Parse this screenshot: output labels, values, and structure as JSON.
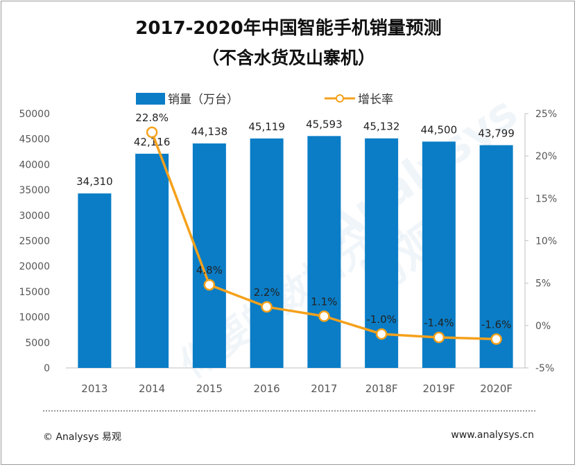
{
  "title": {
    "line1": "2017-2020年中国智能手机销量预测",
    "line2": "（不含水货及山寨机）"
  },
  "legend": {
    "bar_label": "销量（万台）",
    "line_label": "增长率"
  },
  "colors": {
    "bar": "#0a7dc6",
    "line": "#f5a11b",
    "marker_fill": "#ffffff"
  },
  "chart_data": {
    "type": "bar+line",
    "categories": [
      "2013",
      "2014",
      "2015",
      "2016",
      "2017",
      "2018F",
      "2019F",
      "2020F"
    ],
    "series": [
      {
        "name": "销量（万台）",
        "type": "bar",
        "axis": "left",
        "values": [
          34310,
          42116,
          44138,
          45119,
          45593,
          45132,
          44500,
          43799
        ],
        "labels": [
          "34,310",
          "42,116",
          "44,138",
          "45,119",
          "45,593",
          "45,132",
          "44,500",
          "43,799"
        ]
      },
      {
        "name": "增长率",
        "type": "line",
        "axis": "right",
        "values": [
          null,
          22.8,
          4.8,
          2.2,
          1.1,
          -1.0,
          -1.4,
          -1.6
        ],
        "labels": [
          null,
          "22.8%",
          "4.8%",
          "2.2%",
          "1.1%",
          "-1.0%",
          "-1.4%",
          "-1.6%"
        ]
      }
    ],
    "left_axis": {
      "ylim": [
        0,
        50000
      ],
      "ticks": [
        0,
        5000,
        10000,
        15000,
        20000,
        25000,
        30000,
        35000,
        40000,
        45000,
        50000
      ],
      "tick_labels": [
        "0",
        "5000",
        "10000",
        "15000",
        "20000",
        "25000",
        "30000",
        "35000",
        "40000",
        "45000",
        "50000"
      ]
    },
    "right_axis": {
      "ylim": [
        -5,
        25
      ],
      "ticks": [
        -5,
        0,
        5,
        10,
        15,
        20,
        25
      ],
      "tick_labels": [
        "-5%",
        "0%",
        "5%",
        "10%",
        "15%",
        "20%",
        "25%"
      ]
    },
    "grid": false,
    "legend_position": "top"
  },
  "footer": {
    "left": "© Analysys 易观",
    "right": "www.analysys.cn"
  },
  "watermark": {
    "line1": "Analysys 易观",
    "line2": "你要的数据分析"
  }
}
